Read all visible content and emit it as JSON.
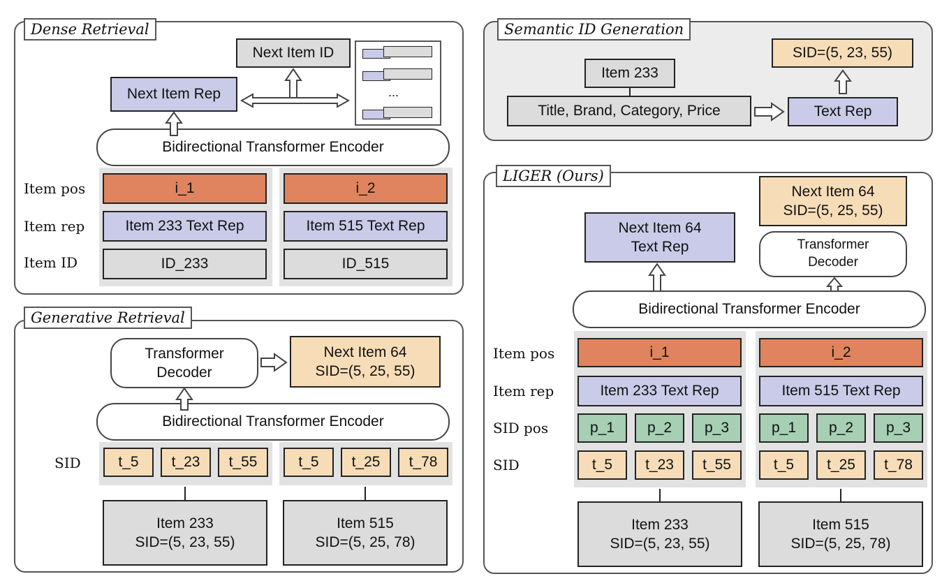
{
  "dense": {
    "title": "Dense Retrieval",
    "next_item_id": "Next Item ID",
    "next_item_rep": "Next Item Rep",
    "ellipsis": "...",
    "encoder": "Bidirectional Transformer Encoder",
    "row_labels": {
      "pos": "Item pos",
      "rep": "Item rep",
      "id": "Item ID"
    },
    "col1": {
      "pos": "i_1",
      "rep": "Item 233 Text Rep",
      "id": "ID_233"
    },
    "col2": {
      "pos": "i_2",
      "rep": "Item 515 Text Rep",
      "id": "ID_515"
    }
  },
  "semantic": {
    "title": "Semantic ID Generation",
    "item": "Item 233",
    "attributes": "Title, Brand, Category, Price",
    "text_rep": "Text Rep",
    "sid": "SID=(5, 23, 55)"
  },
  "generative": {
    "title": "Generative Retrieval",
    "decoder_line1": "Transformer",
    "decoder_line2": "Decoder",
    "next_item_line1": "Next Item 64",
    "next_item_line2": "SID=(5, 25, 55)",
    "encoder": "Bidirectional Transformer Encoder",
    "sid_label": "SID",
    "group1_tokens": [
      "t_5",
      "t_23",
      "t_55"
    ],
    "group2_tokens": [
      "t_5",
      "t_25",
      "t_78"
    ],
    "item1_line1": "Item 233",
    "item1_line2": "SID=(5, 23, 55)",
    "item2_line1": "Item 515",
    "item2_line2": "SID=(5, 25, 78)"
  },
  "liger": {
    "title": "LIGER (Ours)",
    "next_sid_line1": "Next Item 64",
    "next_sid_line2": "SID=(5, 25, 55)",
    "next_rep_line1": "Next Item 64",
    "next_rep_line2": "Text Rep",
    "decoder_line1": "Transformer",
    "decoder_line2": "Decoder",
    "encoder": "Bidirectional Transformer Encoder",
    "row_labels": {
      "pos": "Item pos",
      "rep": "Item rep",
      "sidpos": "SID pos",
      "sid": "SID"
    },
    "col1": {
      "pos": "i_1",
      "rep": "Item 233 Text Rep",
      "sidpos": [
        "p_1",
        "p_2",
        "p_3"
      ],
      "sid": [
        "t_5",
        "t_23",
        "t_55"
      ]
    },
    "col2": {
      "pos": "i_2",
      "rep": "Item 515 Text Rep",
      "sidpos": [
        "p_1",
        "p_2",
        "p_3"
      ],
      "sid": [
        "t_5",
        "t_25",
        "t_78"
      ]
    },
    "item1_line1": "Item 233",
    "item1_line2": "SID=(5, 23, 55)",
    "item2_line1": "Item 515",
    "item2_line2": "SID=(5, 25, 78)"
  }
}
